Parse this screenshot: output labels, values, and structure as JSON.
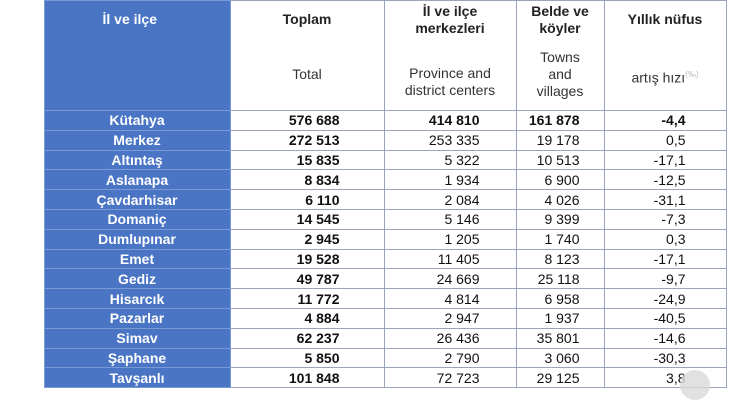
{
  "headers": {
    "col1": "İl ve ilçe",
    "col2_tr": "Toplam",
    "col2_en": "Total",
    "col3_tr_1": "İl ve ilçe",
    "col3_tr_2": "merkezleri",
    "col3_en_1": "Province and",
    "col3_en_2": "district centers",
    "col4_tr_1": "Belde ve",
    "col4_tr_2": "köyler",
    "col4_en_1": "Towns",
    "col4_en_2": "and",
    "col4_en_3": "villages",
    "col5_tr": "Yıllık nüfus",
    "col5_tr_2": "artış hızı",
    "col5_sup": "(‰)"
  },
  "rows": [
    {
      "name": "Kütahya",
      "total": "576 688",
      "centers": "414 810",
      "villages": "161 878",
      "rate": "-4,4"
    },
    {
      "name": "Merkez",
      "total": "272 513",
      "centers": "253 335",
      "villages": "19 178",
      "rate": "0,5"
    },
    {
      "name": "Altıntaş",
      "total": "15 835",
      "centers": "5 322",
      "villages": "10 513",
      "rate": "-17,1"
    },
    {
      "name": "Aslanapa",
      "total": "8 834",
      "centers": "1 934",
      "villages": "6 900",
      "rate": "-12,5"
    },
    {
      "name": "Çavdarhisar",
      "total": "6 110",
      "centers": "2 084",
      "villages": "4 026",
      "rate": "-31,1"
    },
    {
      "name": "Domaniç",
      "total": "14 545",
      "centers": "5 146",
      "villages": "9 399",
      "rate": "-7,3"
    },
    {
      "name": "Dumlupınar",
      "total": "2 945",
      "centers": "1 205",
      "villages": "1 740",
      "rate": "0,3"
    },
    {
      "name": "Emet",
      "total": "19 528",
      "centers": "11 405",
      "villages": "8 123",
      "rate": "-17,1"
    },
    {
      "name": "Gediz",
      "total": "49 787",
      "centers": "24 669",
      "villages": "25 118",
      "rate": "-9,7"
    },
    {
      "name": "Hisarcık",
      "total": "11 772",
      "centers": "4 814",
      "villages": "6 958",
      "rate": "-24,9"
    },
    {
      "name": "Pazarlar",
      "total": "4 884",
      "centers": "2 947",
      "villages": "1 937",
      "rate": "-40,5"
    },
    {
      "name": "Simav",
      "total": "62 237",
      "centers": "26 436",
      "villages": "35 801",
      "rate": "-14,6"
    },
    {
      "name": "Şaphane",
      "total": "5 850",
      "centers": "2 790",
      "villages": "3 060",
      "rate": "-30,3"
    },
    {
      "name": "Tavşanlı",
      "total": "101 848",
      "centers": "72 723",
      "villages": "29 125",
      "rate": "3,8"
    }
  ],
  "colors": {
    "name_column_bg": "#4a74c4",
    "name_column_text": "#ffffff",
    "grid_line": "#9aa4ba"
  }
}
